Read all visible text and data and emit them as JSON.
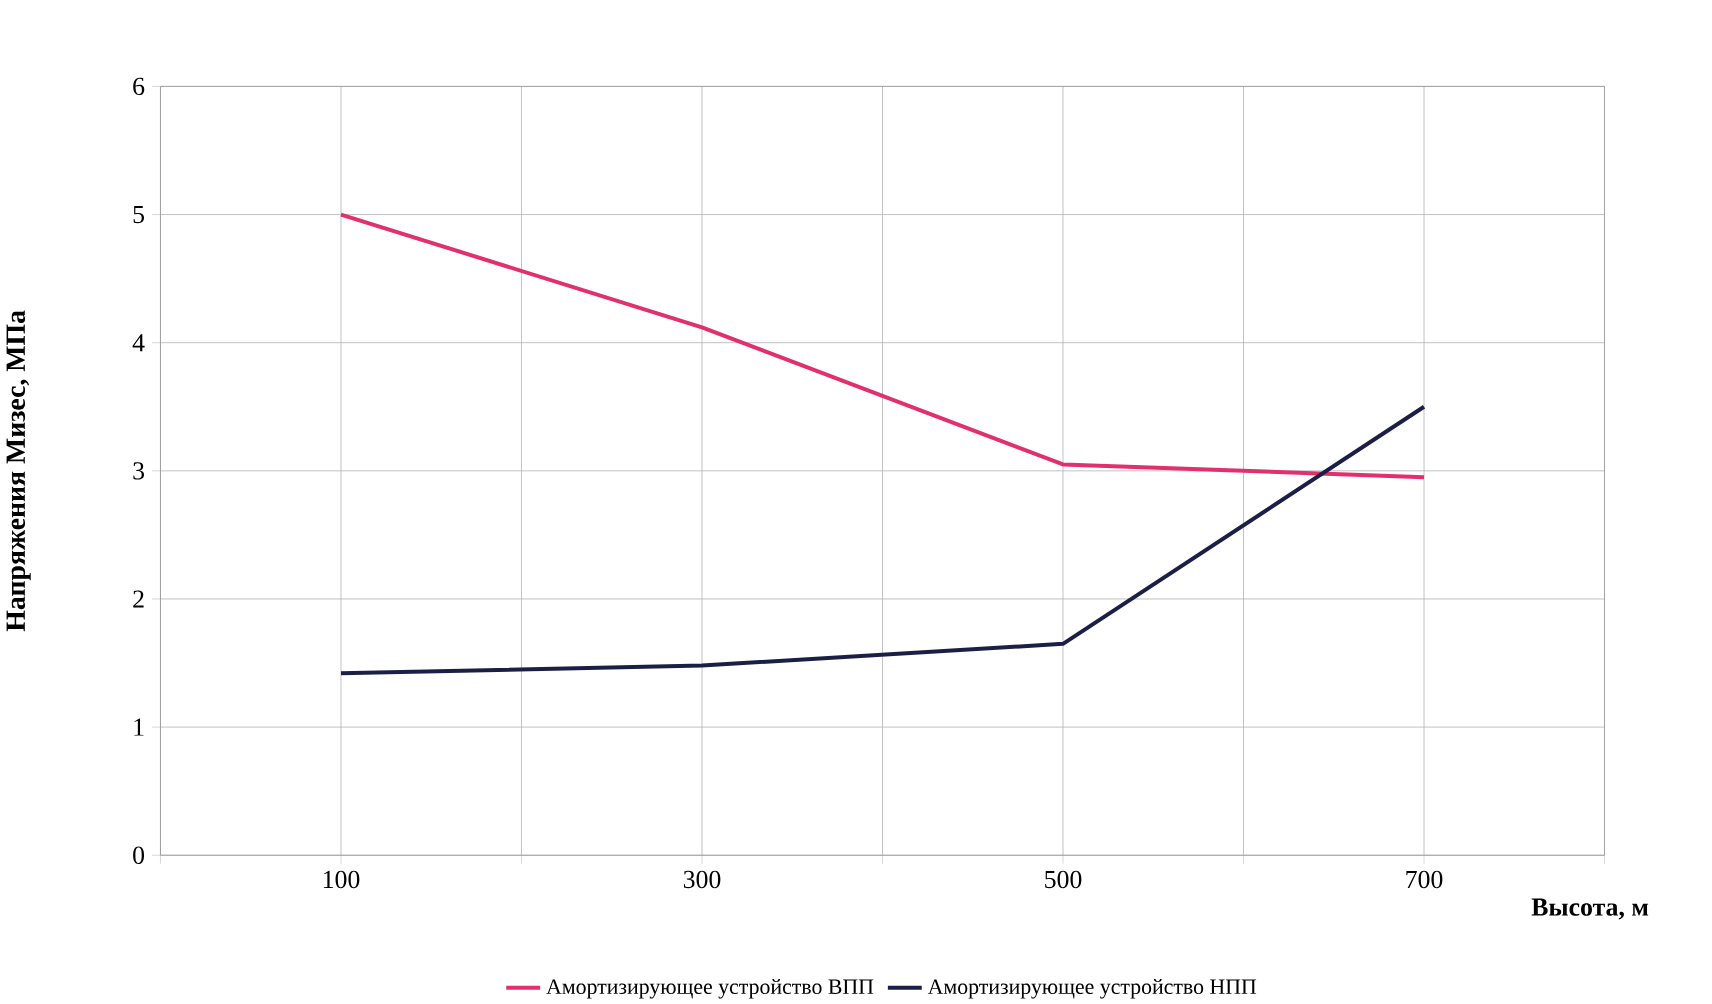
{
  "chart_data": {
    "type": "line",
    "xlabel": "Высота, м",
    "ylabel": "Напряжения Мизес, МПа",
    "x": [
      100,
      300,
      500,
      700
    ],
    "series": [
      {
        "name": "Амортизирующее устройство ВПП",
        "color": "#e2306a",
        "values": [
          5.0,
          4.12,
          3.05,
          2.95
        ]
      },
      {
        "name": "Амортизирующее устройство НПП",
        "color": "#1c1f45",
        "values": [
          1.42,
          1.48,
          1.65,
          3.5
        ]
      }
    ],
    "xlim": [
      0,
      800
    ],
    "xticks": [
      {
        "value": 0,
        "label": null
      },
      100,
      {
        "value": 200,
        "label": null
      },
      300,
      {
        "value": 400,
        "label": null
      },
      500,
      {
        "value": 600,
        "label": null
      },
      700,
      {
        "value": 800,
        "label": null
      }
    ],
    "ylim": [
      0,
      6
    ],
    "yticks": [
      0,
      1,
      2,
      3,
      4,
      5,
      6
    ],
    "grid": true,
    "legend": "bottom",
    "marker": "none",
    "line_style": "solid"
  }
}
